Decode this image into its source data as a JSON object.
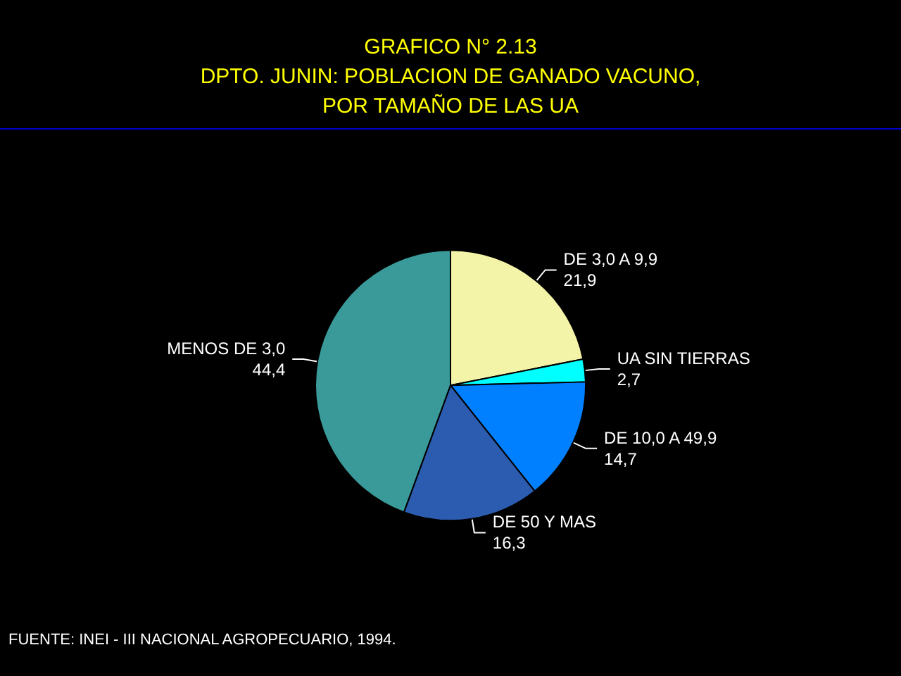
{
  "chart_data": {
    "type": "pie",
    "title": "GRAFICO N° 2.13",
    "subtitle": "DPTO. JUNIN: POBLACION DE GANADO VACUNO,\nPOR TAMAÑO DE LAS UA",
    "categories": [
      "DE 3,0 A 9,9",
      "UA SIN TIERRAS",
      "DE 10,0 A 49,9",
      "DE 50 Y MAS",
      "MENOS DE 3,0"
    ],
    "values": [
      21.9,
      2.7,
      14.7,
      16.3,
      44.4
    ],
    "value_labels": [
      "21,9",
      "2,7",
      "14,7",
      "16,3",
      "44,4"
    ],
    "colors": [
      "#f4f4a8",
      "#00ffff",
      "#0080ff",
      "#2c5cb0",
      "#3a9a9a"
    ],
    "legend": false,
    "annotations": [
      "FUENTE: INEI - III NACIONAL AGROPECUARIO, 1994."
    ]
  }
}
